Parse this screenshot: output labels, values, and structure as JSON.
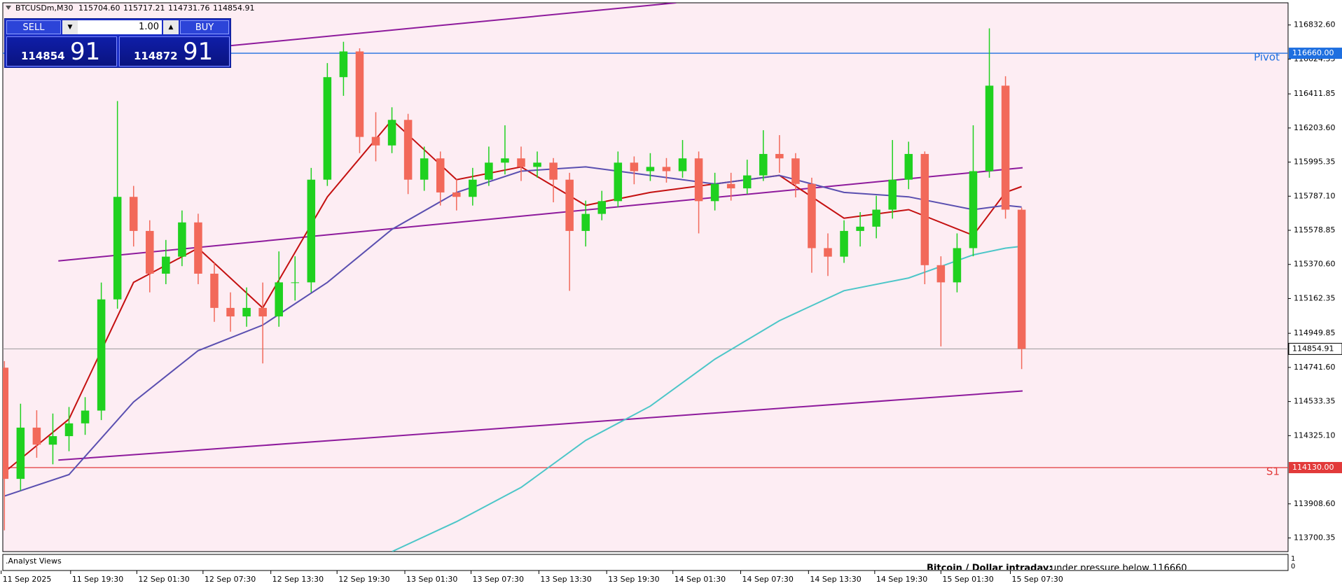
{
  "chart_data": {
    "type": "candlestick",
    "title": "BTCUSDm,M30",
    "header_ohlc": [
      "115704.60",
      "115717.21",
      "114731.76",
      "114854.91"
    ],
    "open": [
      114740,
      114061,
      114374,
      114270,
      114322,
      114400,
      114478,
      115157,
      115783,
      115575,
      115314,
      115418,
      115627,
      115314,
      115105,
      115053,
      115105,
      115053,
      115261,
      115261,
      115888,
      116514,
      116671,
      116149,
      116097,
      116253,
      115888,
      116018,
      115810,
      115783,
      115888,
      115992,
      116018,
      115966,
      115992,
      115888,
      115575,
      115679,
      115757,
      115992,
      115940,
      115966,
      115940,
      116018,
      115757,
      115862,
      115835,
      115914,
      116045,
      116018,
      115862,
      115470,
      115418,
      115575,
      115601,
      115705,
      115888,
      116045,
      115366,
      115261,
      115470,
      115940,
      116462,
      115704.6
    ],
    "high": [
      114780,
      114520,
      114480,
      114460,
      114500,
      114560,
      115260,
      116368,
      115850,
      115640,
      115520,
      115700,
      115680,
      115380,
      115200,
      115230,
      115260,
      115450,
      115420,
      115960,
      116600,
      116730,
      116690,
      116300,
      116330,
      116290,
      116090,
      116060,
      115890,
      115960,
      116090,
      116220,
      116090,
      116060,
      116020,
      115930,
      115760,
      115820,
      116060,
      116030,
      116050,
      116020,
      116130,
      116060,
      115930,
      115930,
      116010,
      116190,
      116160,
      116050,
      115900,
      115560,
      115640,
      115690,
      115790,
      116130,
      116120,
      116060,
      115420,
      115560,
      116220,
      116812,
      116520,
      115717.21
    ],
    "low": [
      113747,
      113990,
      114190,
      114150,
      114230,
      114330,
      114420,
      115100,
      115480,
      115200,
      115250,
      115360,
      115250,
      115020,
      114960,
      114990,
      114766,
      114990,
      115150,
      115200,
      115850,
      116400,
      116050,
      116000,
      116050,
      115800,
      115820,
      115730,
      115700,
      115730,
      115850,
      115920,
      115880,
      115900,
      115750,
      115209,
      115480,
      115640,
      115720,
      115860,
      115880,
      115870,
      115900,
      115560,
      115700,
      115760,
      115800,
      115880,
      115930,
      115780,
      115320,
      115300,
      115380,
      115480,
      115530,
      115650,
      115830,
      115250,
      114870,
      115200,
      115420,
      115900,
      115650,
      114731.76
    ],
    "close": [
      114061,
      114374,
      114270,
      114322,
      114400,
      114478,
      115157,
      115783,
      115575,
      115314,
      115418,
      115627,
      115314,
      115105,
      115053,
      115105,
      115053,
      115261,
      115261,
      115888,
      116514,
      116671,
      116149,
      116097,
      116253,
      115888,
      116018,
      115810,
      115783,
      115888,
      115992,
      116018,
      115966,
      115992,
      115888,
      115575,
      115679,
      115757,
      115992,
      115940,
      115966,
      115940,
      116018,
      115757,
      115862,
      115835,
      115914,
      116045,
      116018,
      115862,
      115470,
      115418,
      115575,
      115601,
      115705,
      115888,
      116045,
      115366,
      115261,
      115470,
      115940,
      116462,
      115705,
      114854.91
    ],
    "up_color": "#1fd11f",
    "down_color": "#f2695a",
    "moving_averages": [
      {
        "color": "#c41010",
        "x": [
          0,
          4,
          8,
          12,
          16,
          20,
          24,
          28,
          32,
          36,
          40,
          44,
          48,
          52,
          56,
          60,
          62,
          63
        ],
        "values": [
          114102,
          114426,
          115261,
          115470,
          115105,
          115783,
          116253,
          115888,
          115966,
          115731,
          115810,
          115862,
          115914,
          115653,
          115705,
          115548,
          115810,
          115846
        ]
      },
      {
        "color": "#5a4fb0",
        "x": [
          0,
          4,
          8,
          12,
          16,
          20,
          24,
          28,
          32,
          36,
          40,
          44,
          48,
          52,
          56,
          60,
          62,
          63
        ],
        "values": [
          113956,
          114087,
          114531,
          114844,
          115000,
          115261,
          115585,
          115810,
          115940,
          115966,
          115914,
          115862,
          115914,
          115810,
          115783,
          115705,
          115731,
          115721
        ]
      },
      {
        "color": "#4cc6c8",
        "x": [
          24,
          28,
          32,
          36,
          40,
          44,
          48,
          52,
          56,
          60,
          62,
          63
        ],
        "values": [
          113617,
          113800,
          114009,
          114296,
          114505,
          114792,
          115027,
          115210,
          115288,
          115429,
          115470,
          115481
        ]
      }
    ],
    "trendlines": [
      {
        "color": "#8e1a9c",
        "x": [
          14.04,
          41.6
        ],
        "values": [
          116707,
          116968
        ]
      },
      {
        "color": "#8e1a9c",
        "x": [
          3.34,
          63.06
        ],
        "values": [
          115392,
          115961
        ]
      },
      {
        "color": "#8e1a9c",
        "x": [
          3.34,
          63.06
        ],
        "values": [
          114175.6,
          114598
        ]
      }
    ],
    "levels": [
      {
        "name": "Pivot",
        "value": 116660,
        "label": "116660.00",
        "color": "#1e6fe0"
      },
      {
        "name": "S1",
        "value": 114130,
        "label": "114130.00",
        "color": "#e23a3a"
      }
    ],
    "current_price": {
      "value": 114854.91,
      "label": "114854.91"
    },
    "xlim": [
      -0.1,
      79.5
    ],
    "ylim": [
      113617,
      116968
    ],
    "xticks": [
      {
        "value": -0.2,
        "label": "11 Sep 2025"
      },
      {
        "value": 4.1,
        "label": "11 Sep 19:30"
      },
      {
        "value": 8.2,
        "label": "12 Sep 01:30"
      },
      {
        "value": 12.3,
        "label": "12 Sep 07:30"
      },
      {
        "value": 16.5,
        "label": "12 Sep 13:30"
      },
      {
        "value": 20.6,
        "label": "12 Sep 19:30"
      },
      {
        "value": 24.8,
        "label": "13 Sep 01:30"
      },
      {
        "value": 28.9,
        "label": "13 Sep 07:30"
      },
      {
        "value": 33.1,
        "label": "13 Sep 13:30"
      },
      {
        "value": 37.3,
        "label": "13 Sep 19:30"
      },
      {
        "value": 41.4,
        "label": "14 Sep 01:30"
      },
      {
        "value": 45.6,
        "label": "14 Sep 07:30"
      },
      {
        "value": 49.8,
        "label": "14 Sep 13:30"
      },
      {
        "value": 53.9,
        "label": "14 Sep 19:30"
      },
      {
        "value": 58,
        "label": "15 Sep 01:30"
      },
      {
        "value": 62.3,
        "label": "15 Sep 07:30"
      }
    ],
    "yticks": [
      {
        "value": 116832.6,
        "label": "116832.60"
      },
      {
        "value": 116624.35,
        "label": "116624.35"
      },
      {
        "value": 116411.85,
        "label": "116411.85"
      },
      {
        "value": 116203.6,
        "label": "116203.60"
      },
      {
        "value": 115995.35,
        "label": "115995.35"
      },
      {
        "value": 115787.1,
        "label": "115787.10"
      },
      {
        "value": 115578.85,
        "label": "115578.85"
      },
      {
        "value": 115370.6,
        "label": "115370.60"
      },
      {
        "value": 115162.35,
        "label": "115162.35"
      },
      {
        "value": 114949.85,
        "label": "114949.85"
      },
      {
        "value": 114741.6,
        "label": "114741.60"
      },
      {
        "value": 114533.35,
        "label": "114533.35"
      },
      {
        "value": 114325.1,
        "label": "114325.10"
      },
      {
        "value": 113908.6,
        "label": "113908.60"
      },
      {
        "value": 113700.35,
        "label": "113700.35"
      }
    ],
    "background": "#fdedf3"
  },
  "trade_panel": {
    "sell": "SELL",
    "buy": "BUY",
    "volume": "1.00",
    "bid_main": "114854",
    "bid_pips": "91",
    "ask_main": "114872",
    "ask_pips": "91"
  },
  "indicator_panel": {
    "name": ".Analyst Views",
    "text_bold": "Bitcoin / Dollar intraday:",
    "text": "under pressure below 116660",
    "scale_top": "1",
    "scale_bottom": "0"
  }
}
